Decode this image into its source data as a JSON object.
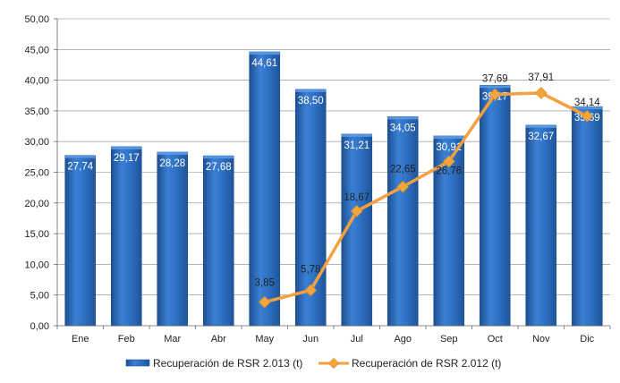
{
  "colors": {
    "bar_fill": "#2f72c6",
    "bar_light": "#5a9ae6",
    "bar_dark": "#1d4f91",
    "line": "#f5a040",
    "marker": "#f3a53e",
    "grid": "#888888"
  },
  "chart_data": {
    "type": "bar",
    "categories": [
      "Ene",
      "Feb",
      "Mar",
      "Abr",
      "May",
      "Jun",
      "Jul",
      "Ago",
      "Sep",
      "Oct",
      "Nov",
      "Dic"
    ],
    "ylim": [
      0,
      50
    ],
    "ytick_labels": [
      "0,00",
      "5,00",
      "10,00",
      "15,00",
      "20,00",
      "25,00",
      "30,00",
      "35,00",
      "40,00",
      "45,00",
      "50,00"
    ],
    "grid": true,
    "legend_position": "bottom",
    "series": [
      {
        "name": "Recuperación de RSR 2.013 (t)",
        "kind": "bar",
        "values": [
          27.74,
          29.17,
          28.28,
          27.68,
          44.61,
          38.5,
          31.21,
          34.05,
          30.91,
          39.17,
          32.67,
          35.69
        ],
        "labels": [
          "27,74",
          "29,17",
          "28,28",
          "27,68",
          "44,61",
          "38,50",
          "31,21",
          "34,05",
          "30,91",
          "39,17",
          "32,67",
          "35,69"
        ]
      },
      {
        "name": "Recuperación de RSR 2.012 (t)",
        "kind": "line",
        "values": [
          null,
          null,
          null,
          null,
          3.85,
          5.78,
          18.67,
          22.65,
          26.76,
          37.69,
          37.91,
          34.14
        ],
        "labels": [
          "",
          "",
          "",
          "",
          "3,85",
          "5,78",
          "18,67",
          "22,65",
          "26,76",
          "37,69",
          "37,91",
          "34,14"
        ]
      }
    ]
  }
}
